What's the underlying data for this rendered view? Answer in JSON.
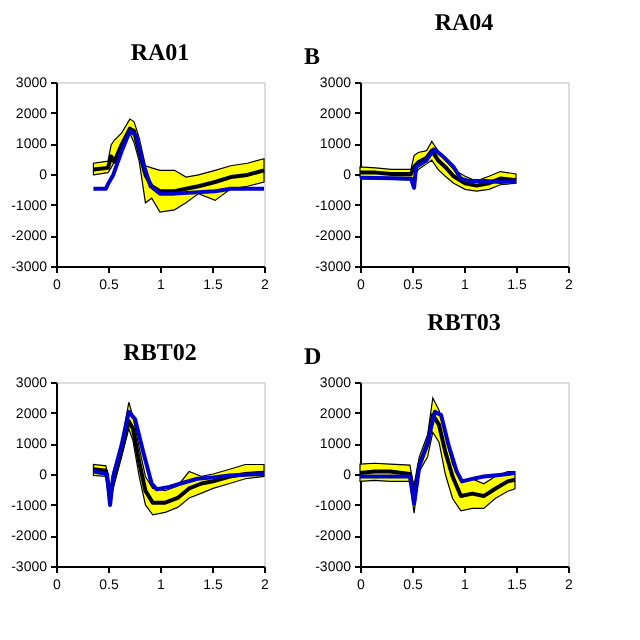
{
  "chart_data": [
    {
      "type": "line",
      "title": "RA01",
      "xlim": [
        0,
        2
      ],
      "ylim": [
        -3000,
        3000
      ],
      "xticks": [
        0,
        0.5,
        1,
        1.5,
        2
      ],
      "yticks": [
        -3000,
        -2000,
        -1000,
        0,
        1000,
        2000,
        3000
      ],
      "grid": false,
      "legend": false,
      "line_style": "solid",
      "marker": "none",
      "series": [
        {
          "color": "#000000",
          "x": [
            0.36,
            0.5,
            0.53,
            0.56,
            0.63,
            0.71,
            0.75,
            0.8,
            0.86,
            0.92,
            1.0,
            1.14,
            1.25,
            1.37,
            1.53,
            1.68,
            1.84,
            2.0
          ],
          "values": [
            150,
            200,
            575,
            400,
            950,
            1480,
            1400,
            730,
            -30,
            -400,
            -560,
            -560,
            -480,
            -400,
            -260,
            -100,
            -30,
            120
          ],
          "upper": [
            350,
            420,
            950,
            1100,
            1330,
            1790,
            1710,
            1180,
            270,
            200,
            120,
            120,
            -100,
            -30,
            120,
            270,
            350,
            500
          ],
          "lower": [
            -30,
            45,
            200,
            400,
            730,
            1330,
            1030,
            420,
            -940,
            -790,
            -1240,
            -1170,
            -940,
            -640,
            -860,
            -480,
            -400,
            -260
          ]
        },
        {
          "color": "#0000cc",
          "x": [
            0.36,
            0.48,
            0.5,
            0.55,
            0.63,
            0.71,
            0.77,
            0.83,
            0.91,
            1.0,
            1.14,
            1.53,
            1.68,
            2.0
          ],
          "values": [
            -480,
            -480,
            -330,
            -30,
            730,
            1400,
            1260,
            420,
            -400,
            -640,
            -640,
            -560,
            -480,
            -480
          ]
        }
      ]
    },
    {
      "type": "line",
      "title": "RA04",
      "annotations": [
        "B"
      ],
      "xlim": [
        0,
        2
      ],
      "ylim": [
        -3000,
        3000
      ],
      "xticks": [
        0,
        0.5,
        1,
        1.5,
        2
      ],
      "yticks": [
        -3000,
        -2000,
        -1000,
        0,
        1000,
        2000,
        3000
      ],
      "grid": false,
      "legend": false,
      "line_style": "solid",
      "marker": "none",
      "series": [
        {
          "color": "#000000",
          "x": [
            0,
            0.15,
            0.3,
            0.49,
            0.52,
            0.56,
            0.64,
            0.69,
            0.75,
            0.82,
            0.9,
            1.01,
            1.12,
            1.24,
            1.35,
            1.5
          ],
          "values": [
            45,
            45,
            0,
            0,
            230,
            380,
            530,
            760,
            450,
            230,
            -75,
            -300,
            -380,
            -300,
            -150,
            -200
          ],
          "upper": [
            230,
            200,
            150,
            150,
            600,
            700,
            760,
            1060,
            760,
            450,
            150,
            -75,
            -230,
            -75,
            80,
            0
          ],
          "lower": [
            -105,
            -150,
            -180,
            -200,
            -75,
            150,
            330,
            450,
            150,
            -75,
            -300,
            -500,
            -560,
            -500,
            -350,
            -300
          ]
        },
        {
          "color": "#0000cc",
          "x": [
            0,
            0.49,
            0.52,
            0.54,
            0.64,
            0.71,
            0.79,
            0.9,
            0.97,
            1.05,
            1.2,
            1.35,
            1.5
          ],
          "values": [
            -120,
            -150,
            -450,
            230,
            450,
            800,
            600,
            230,
            -150,
            -230,
            -230,
            -260,
            -230
          ]
        }
      ]
    },
    {
      "type": "line",
      "title": "RBT02",
      "xlim": [
        0,
        2
      ],
      "ylim": [
        -3000,
        3000
      ],
      "xticks": [
        0,
        0.5,
        1,
        1.5,
        2
      ],
      "yticks": [
        -3000,
        -2000,
        -1000,
        0,
        1000,
        2000,
        3000
      ],
      "grid": false,
      "legend": false,
      "line_style": "solid",
      "marker": "none",
      "series": [
        {
          "color": "#000000",
          "x": [
            0.36,
            0.48,
            0.52,
            0.55,
            0.63,
            0.7,
            0.74,
            0.8,
            0.86,
            0.93,
            1.05,
            1.17,
            1.28,
            1.4,
            1.51,
            1.67,
            1.82,
            2.0
          ],
          "values": [
            155,
            110,
            -700,
            -230,
            780,
            1720,
            1480,
            390,
            -545,
            -935,
            -935,
            -780,
            -470,
            -310,
            -235,
            -80,
            0,
            45
          ],
          "upper": [
            310,
            265,
            -545,
            80,
            1010,
            2340,
            1870,
            860,
            -80,
            -470,
            -545,
            -390,
            80,
            -80,
            0,
            155,
            310,
            310
          ],
          "lower": [
            -45,
            -80,
            -860,
            -470,
            545,
            1480,
            1090,
            -80,
            -1010,
            -1330,
            -1250,
            -1090,
            -780,
            -625,
            -470,
            -310,
            -155,
            -80
          ]
        },
        {
          "color": "#0000cc",
          "x": [
            0.36,
            0.49,
            0.52,
            0.55,
            0.63,
            0.7,
            0.76,
            0.84,
            0.92,
            0.97,
            1.09,
            1.2,
            1.36,
            1.51,
            1.67,
            2.0
          ],
          "values": [
            80,
            0,
            -1010,
            -80,
            935,
            2030,
            1790,
            700,
            -310,
            -500,
            -420,
            -310,
            -155,
            -110,
            -45,
            0
          ]
        }
      ]
    },
    {
      "type": "line",
      "title": "RBT03",
      "annotations": [
        "D"
      ],
      "xlim": [
        0,
        2
      ],
      "ylim": [
        -3000,
        3000
      ],
      "xticks": [
        0,
        0.5,
        1,
        1.5,
        2
      ],
      "yticks": [
        -3000,
        -2000,
        -1000,
        0,
        1000,
        2000,
        3000
      ],
      "grid": false,
      "legend": false,
      "line_style": "solid",
      "marker": "none",
      "series": [
        {
          "color": "#000000",
          "x": [
            0,
            0.14,
            0.29,
            0.48,
            0.52,
            0.57,
            0.65,
            0.7,
            0.76,
            0.82,
            0.89,
            0.97,
            1.08,
            1.19,
            1.3,
            1.42,
            1.49
          ],
          "values": [
            30,
            80,
            80,
            0,
            -640,
            320,
            960,
            1920,
            1600,
            720,
            -80,
            -720,
            -640,
            -720,
            -480,
            -240,
            -190
          ],
          "upper": [
            320,
            350,
            320,
            290,
            -480,
            560,
            1280,
            2480,
            2080,
            1280,
            320,
            -240,
            -160,
            -320,
            -80,
            80,
            80
          ],
          "lower": [
            -240,
            -210,
            -240,
            -240,
            -1280,
            80,
            560,
            1360,
            1040,
            0,
            -800,
            -1200,
            -1120,
            -1120,
            -800,
            -560,
            -480
          ]
        },
        {
          "color": "#0000cc",
          "x": [
            0,
            0.48,
            0.52,
            0.57,
            0.65,
            0.72,
            0.78,
            0.85,
            0.93,
            0.98,
            1.08,
            1.19,
            1.34,
            1.49
          ],
          "values": [
            -80,
            -80,
            -960,
            240,
            1040,
            2030,
            1920,
            960,
            80,
            -240,
            -160,
            -80,
            -30,
            30
          ]
        }
      ]
    }
  ]
}
